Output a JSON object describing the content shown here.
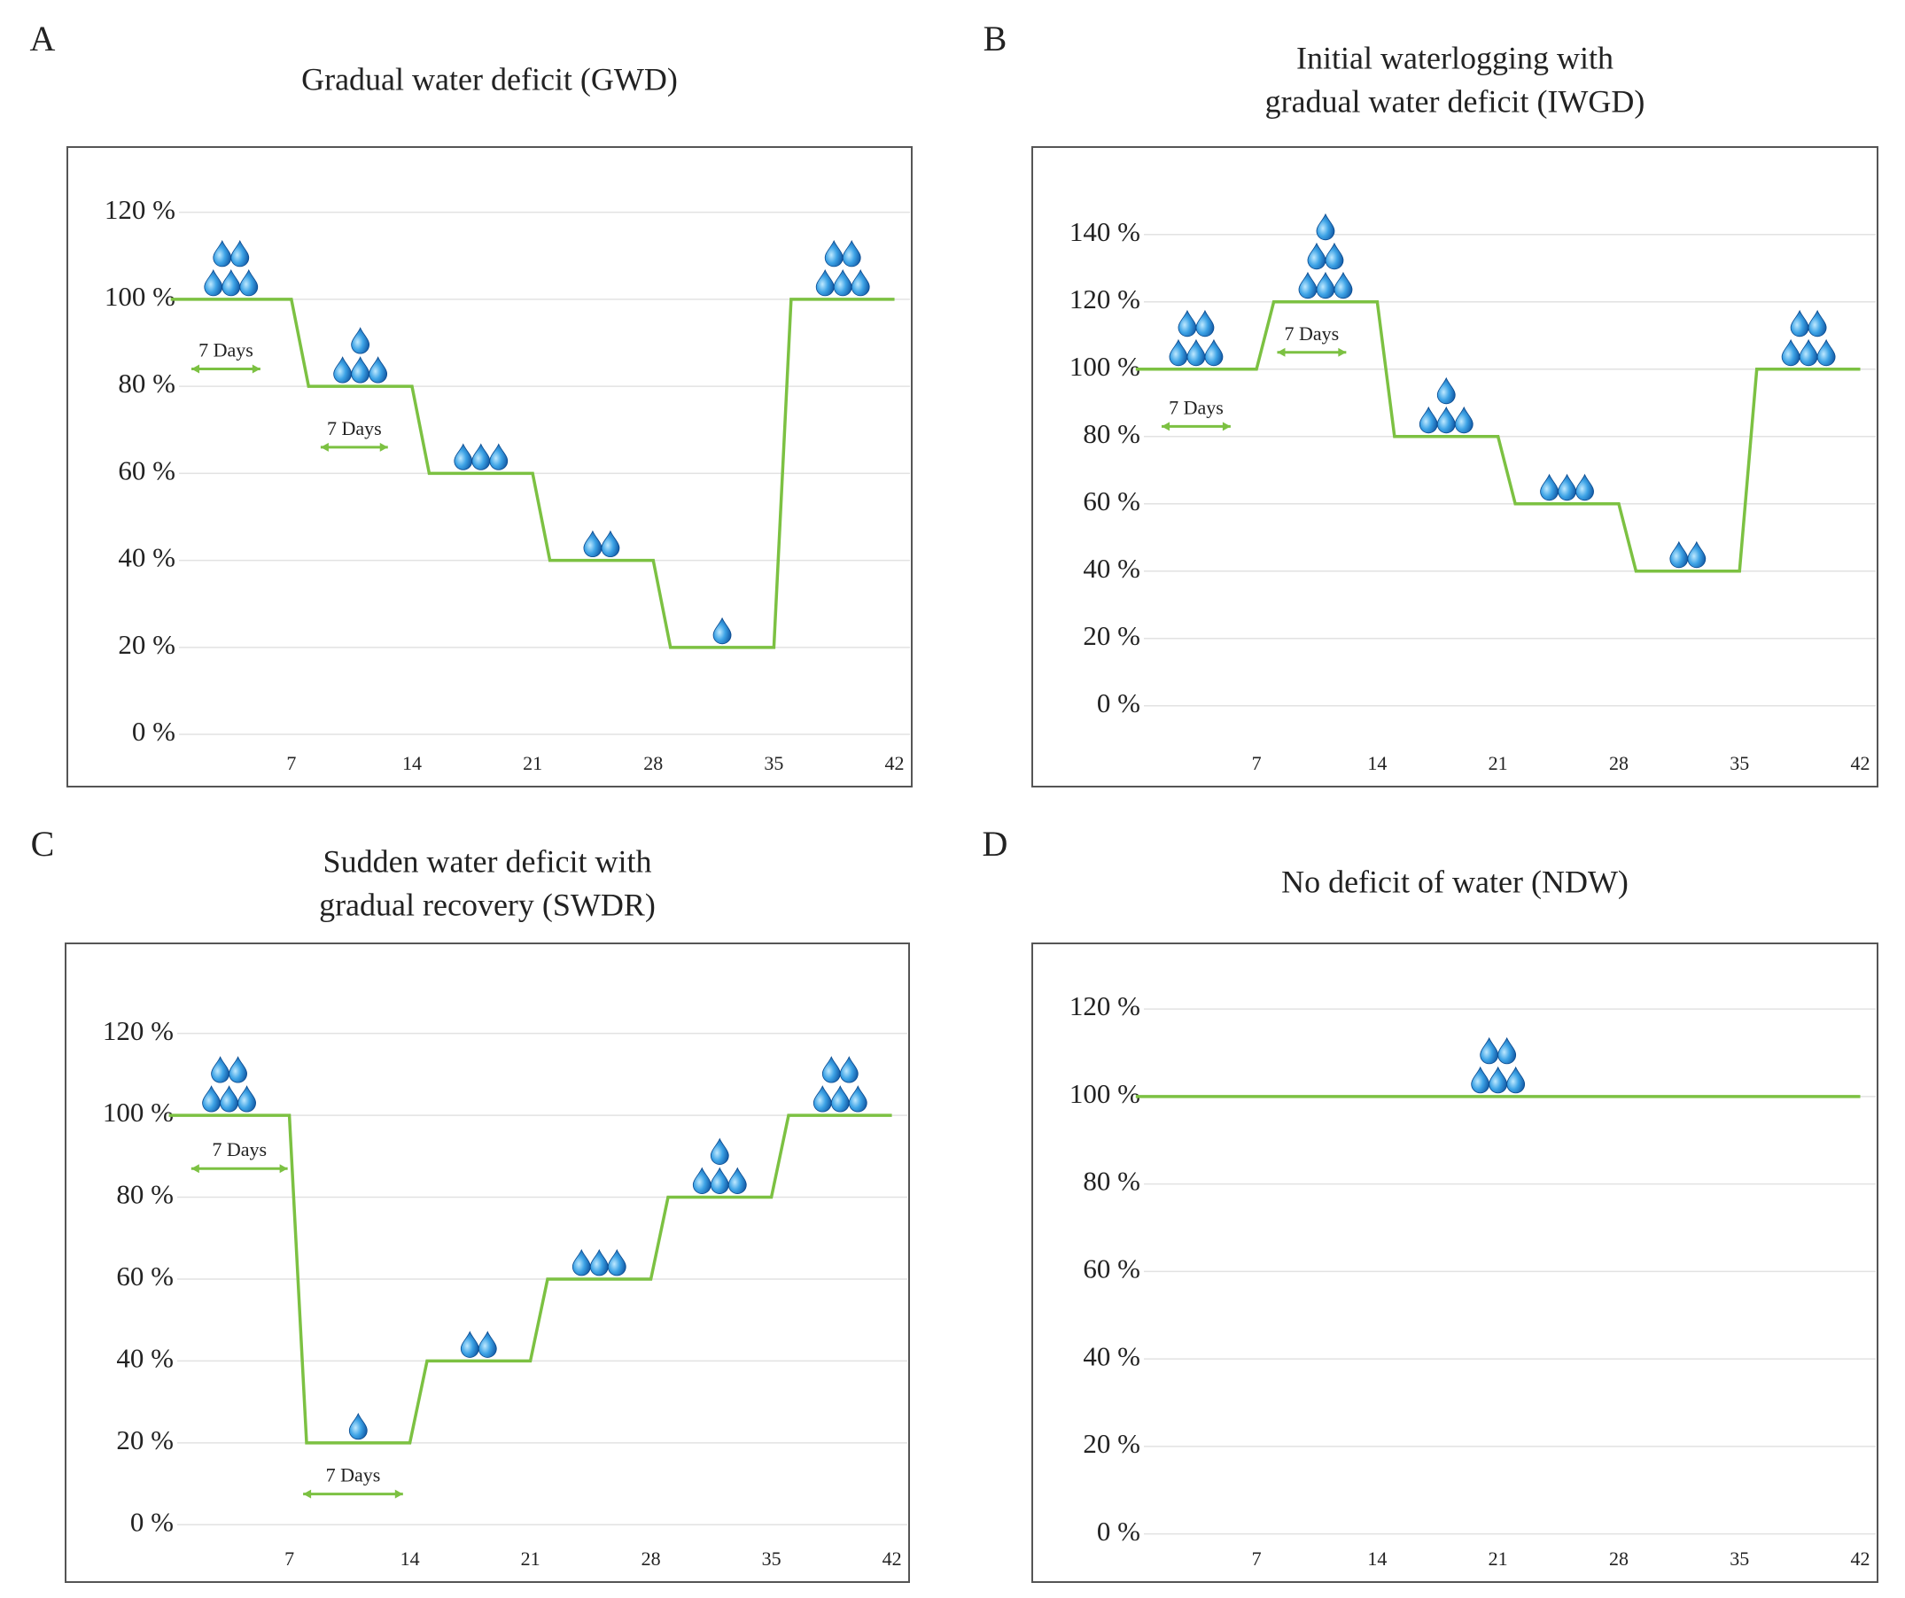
{
  "chart_data": [
    {
      "type": "line",
      "panel": "A",
      "title": [
        "Gradual water deficit (GWD)"
      ],
      "x": [
        0,
        7,
        8,
        14,
        15,
        21,
        22,
        28,
        29,
        35,
        36,
        42
      ],
      "values": [
        100,
        100,
        80,
        80,
        60,
        60,
        40,
        40,
        20,
        20,
        100,
        100
      ],
      "color": "#7cc142",
      "drop_counts": [
        5,
        4,
        3,
        2,
        1,
        5
      ],
      "annotations": [
        {
          "text": "7 Days",
          "x": [
            1.2,
            5.2
          ],
          "y": 84
        },
        {
          "text": "7 Days",
          "x": [
            8.7,
            12.6
          ],
          "y": 66
        }
      ],
      "xlim": [
        -6,
        43
      ],
      "xticks": [
        7,
        14,
        21,
        28,
        35,
        42
      ],
      "ylim": [
        -12,
        135
      ],
      "yticks": [
        {
          "value": 0,
          "label": "0 %"
        },
        {
          "value": 20,
          "label": "20 %"
        },
        {
          "value": 40,
          "label": "40 %"
        },
        {
          "value": 60,
          "label": "60 %"
        },
        {
          "value": 80,
          "label": "80 %"
        },
        {
          "value": 100,
          "label": "100 %"
        },
        {
          "value": 120,
          "label": "120 %"
        }
      ],
      "grid": true
    },
    {
      "type": "line",
      "panel": "B",
      "title": [
        "Initial waterlogging with",
        "gradual water deficit (IWGD)"
      ],
      "x": [
        0,
        7,
        8,
        14,
        15,
        21,
        22,
        28,
        29,
        35,
        36,
        42
      ],
      "values": [
        100,
        100,
        120,
        120,
        80,
        80,
        60,
        60,
        40,
        40,
        100,
        100
      ],
      "color": "#7cc142",
      "drop_counts": [
        5,
        6,
        4,
        3,
        2,
        5
      ],
      "annotations": [
        {
          "text": "7 Days",
          "x": [
            1.5,
            5.5
          ],
          "y": 83
        },
        {
          "text": "7 Days",
          "x": [
            8.2,
            12.2
          ],
          "y": 105
        }
      ],
      "xlim": [
        -6,
        43
      ],
      "xticks": [
        7,
        14,
        21,
        28,
        35,
        42
      ],
      "ylim": [
        -24,
        166
      ],
      "yticks": [
        {
          "value": 0,
          "label": "0 %"
        },
        {
          "value": 20,
          "label": "20 %"
        },
        {
          "value": 40,
          "label": "40 %"
        },
        {
          "value": 60,
          "label": "60 %"
        },
        {
          "value": 80,
          "label": "80 %"
        },
        {
          "value": 100,
          "label": "100 %"
        },
        {
          "value": 120,
          "label": "120 %"
        },
        {
          "value": 140,
          "label": "140 %"
        }
      ],
      "grid": true
    },
    {
      "type": "line",
      "panel": "C",
      "title": [
        "Sudden water deficit with",
        "gradual recovery (SWDR)"
      ],
      "x": [
        0,
        7,
        8,
        14,
        15,
        21,
        22,
        28,
        29,
        35,
        36,
        42
      ],
      "values": [
        100,
        100,
        20,
        20,
        40,
        40,
        60,
        60,
        80,
        80,
        100,
        100
      ],
      "color": "#7cc142",
      "drop_counts": [
        5,
        1,
        2,
        3,
        4,
        5
      ],
      "annotations": [
        {
          "text": "7 Days",
          "x": [
            1.3,
            6.9
          ],
          "y": 87
        },
        {
          "text": "7 Days",
          "x": [
            7.8,
            13.6
          ],
          "y": 7.5
        }
      ],
      "xlim": [
        -6,
        43
      ],
      "xticks": [
        7,
        14,
        21,
        28,
        35,
        42
      ],
      "ylim": [
        -14,
        142
      ],
      "yticks": [
        {
          "value": 0,
          "label": "0 %"
        },
        {
          "value": 20,
          "label": "20 %"
        },
        {
          "value": 40,
          "label": "40 %"
        },
        {
          "value": 60,
          "label": "60 %"
        },
        {
          "value": 80,
          "label": "80 %"
        },
        {
          "value": 100,
          "label": "100 %"
        },
        {
          "value": 120,
          "label": "120 %"
        }
      ],
      "grid": true
    },
    {
      "type": "line",
      "panel": "D",
      "title": [
        "No deficit of water (NDW)"
      ],
      "x": [
        0,
        42
      ],
      "values": [
        100,
        100
      ],
      "color": "#7cc142",
      "drop_counts": [
        5
      ],
      "annotations": [],
      "xlim": [
        -6,
        43
      ],
      "xticks": [
        7,
        14,
        21,
        28,
        35,
        42
      ],
      "ylim": [
        -11,
        135
      ],
      "yticks": [
        {
          "value": 0,
          "label": "0 %"
        },
        {
          "value": 20,
          "label": "20 %"
        },
        {
          "value": 40,
          "label": "40 %"
        },
        {
          "value": 60,
          "label": "60 %"
        },
        {
          "value": 80,
          "label": "80 %"
        },
        {
          "value": 100,
          "label": "100 %"
        },
        {
          "value": 120,
          "label": "120 %"
        }
      ],
      "grid": true
    }
  ]
}
